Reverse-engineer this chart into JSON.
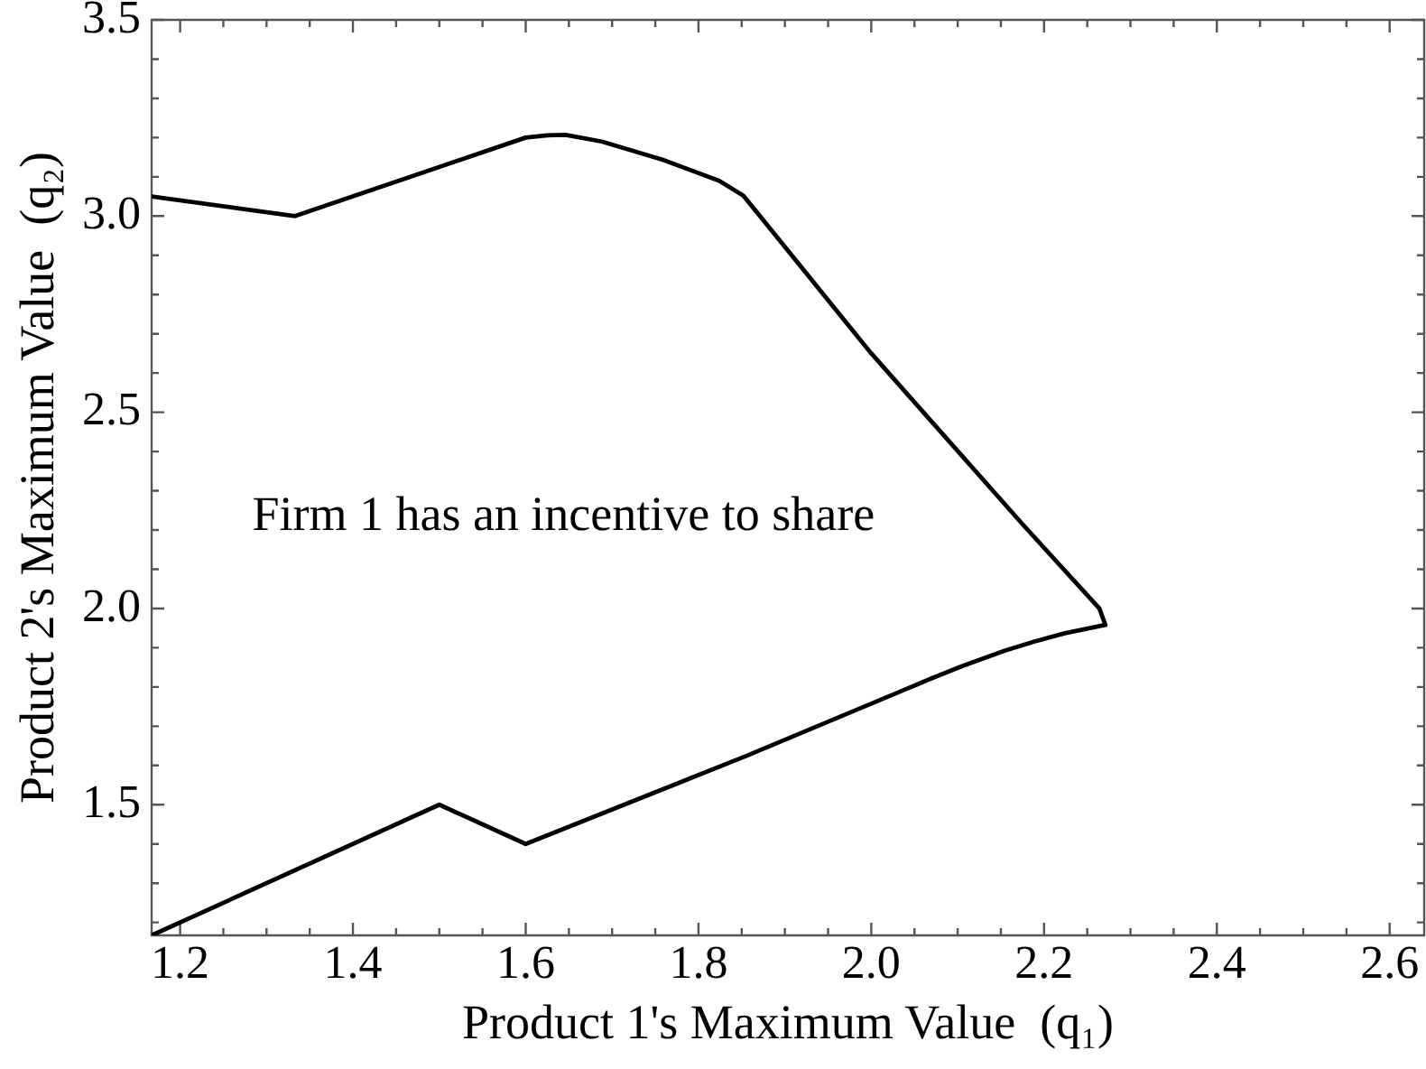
{
  "chart_data": {
    "type": "line",
    "xlabel": "Product 1's Maximum Value  (q₁)",
    "ylabel": "Product 2's Maximum Value  (q₂)",
    "annotations": [
      "Firm 1 has an incentive to share"
    ],
    "series": [
      {
        "color": "#000000",
        "x": [
          1.167,
          1.333,
          1.6,
          1.625,
          1.646,
          1.688,
          1.758,
          1.824,
          1.852,
          2.0,
          2.175,
          2.264,
          2.271,
          2.224,
          2.189,
          2.155,
          2.106,
          2.07,
          2.033,
          1.855,
          1.6,
          1.5,
          1.167
        ],
        "values": [
          3.05,
          3.0,
          3.2,
          3.206,
          3.207,
          3.19,
          3.144,
          3.09,
          3.052,
          2.65,
          2.215,
          2.0,
          1.958,
          1.937,
          1.916,
          1.893,
          1.854,
          1.822,
          1.788,
          1.624,
          1.4,
          1.5,
          1.167
        ]
      }
    ],
    "xlim": [
      1.167,
      2.64
    ],
    "ylim": [
      1.167,
      3.5
    ],
    "xticks": [
      1.2,
      {
        "value": 1.25,
        "label": null
      },
      {
        "value": 1.3,
        "label": null
      },
      {
        "value": 1.35,
        "label": null
      },
      1.4,
      {
        "value": 1.45,
        "label": null
      },
      {
        "value": 1.5,
        "label": null
      },
      {
        "value": 1.55,
        "label": null
      },
      1.6,
      {
        "value": 1.65,
        "label": null
      },
      {
        "value": 1.7,
        "label": null
      },
      {
        "value": 1.75,
        "label": null
      },
      1.8,
      {
        "value": 1.85,
        "label": null
      },
      {
        "value": 1.9,
        "label": null
      },
      {
        "value": 1.95,
        "label": null
      },
      {
        "value": 2,
        "label": "2.0"
      },
      {
        "value": 2.05,
        "label": null
      },
      {
        "value": 2.1,
        "label": null
      },
      {
        "value": 2.15,
        "label": null
      },
      2.2,
      {
        "value": 2.25,
        "label": null
      },
      {
        "value": 2.3,
        "label": null
      },
      {
        "value": 2.35,
        "label": null
      },
      2.4,
      {
        "value": 2.45,
        "label": null
      },
      {
        "value": 2.5,
        "label": null
      },
      {
        "value": 2.55,
        "label": null
      },
      2.6
    ],
    "yticks": [
      {
        "value": 1.2,
        "label": null
      },
      {
        "value": 1.3,
        "label": null
      },
      {
        "value": 1.4,
        "label": null
      },
      1.5,
      {
        "value": 1.6,
        "label": null
      },
      {
        "value": 1.7,
        "label": null
      },
      {
        "value": 1.8,
        "label": null
      },
      {
        "value": 1.9,
        "label": null
      },
      {
        "value": 2,
        "label": "2.0"
      },
      {
        "value": 2.1,
        "label": null
      },
      {
        "value": 2.2,
        "label": null
      },
      {
        "value": 2.3,
        "label": null
      },
      {
        "value": 2.4,
        "label": null
      },
      2.5,
      {
        "value": 2.6,
        "label": null
      },
      {
        "value": 2.7,
        "label": null
      },
      {
        "value": 2.8,
        "label": null
      },
      {
        "value": 2.9,
        "label": null
      },
      {
        "value": 3,
        "label": "3.0"
      },
      {
        "value": 3.1,
        "label": null
      },
      {
        "value": 3.2,
        "label": null
      },
      {
        "value": 3.3,
        "label": null
      },
      {
        "value": 3.4,
        "label": null
      },
      3.5
    ],
    "marker": "none"
  }
}
